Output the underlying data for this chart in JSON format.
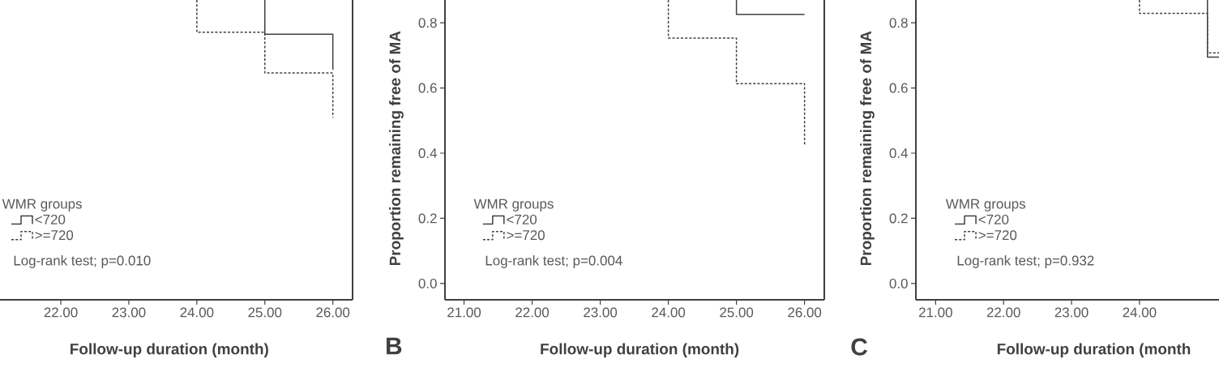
{
  "chart_data": [
    {
      "type": "line",
      "xlabel": "Follow-up duration (month)",
      "legend": "bottom left",
      "legend_title": "WMR groups",
      "tick_labels": "x",
      "xlim": [
        21.106,
        26.29
      ],
      "ylim": [
        -0.05,
        0.87
      ],
      "xticks": [
        {
          "value": 22,
          "label": "22.00"
        },
        {
          "value": 23,
          "label": "23.00"
        },
        {
          "value": 24,
          "label": "24.00"
        },
        {
          "value": 25,
          "label": "25.00"
        },
        {
          "value": 26,
          "label": "26.00"
        }
      ],
      "series": [
        {
          "name": "<720",
          "color": "#404040",
          "line_style": "solid",
          "x": [
            25,
            25,
            26,
            26
          ],
          "values": [
            0.87,
            0.765,
            0.765,
            0.656
          ]
        },
        {
          "name": ">=720",
          "color": "#404040",
          "line_style": "dashed",
          "x": [
            24,
            24,
            25,
            25,
            26,
            26
          ],
          "values": [
            0.87,
            0.771,
            0.771,
            0.646,
            0.646,
            0.509
          ]
        }
      ],
      "annotations": [
        "Log-rank test; p=0.010"
      ]
    },
    {
      "type": "line",
      "xlabel": "Follow-up duration (month)",
      "ylabel": "Proportion remaining free of MA",
      "legend": "bottom left",
      "legend_title": "WMR groups",
      "xlim": [
        20.72,
        26.29
      ],
      "ylim": [
        -0.05,
        0.87
      ],
      "xticks": [
        {
          "value": 21,
          "label": "21.00"
        },
        {
          "value": 22,
          "label": "22.00"
        },
        {
          "value": 23,
          "label": "23.00"
        },
        {
          "value": 24,
          "label": "24.00"
        },
        {
          "value": 25,
          "label": "25.00"
        },
        {
          "value": 26,
          "label": "26.00"
        }
      ],
      "yticks": [
        {
          "value": 0,
          "label": "0.0"
        },
        0.2,
        0.4,
        0.6,
        0.8
      ],
      "series": [
        {
          "name": "<720",
          "color": "#404040",
          "line_style": "solid",
          "x": [
            25,
            25,
            26
          ],
          "values": [
            0.87,
            0.826,
            0.826
          ]
        },
        {
          "name": ">=720",
          "color": "#404040",
          "line_style": "dashed",
          "x": [
            24,
            24,
            25,
            25,
            26,
            26
          ],
          "values": [
            0.87,
            0.753,
            0.753,
            0.613,
            0.613,
            0.425
          ]
        }
      ],
      "annotations": [
        "Log-rank test; p=0.004",
        "B"
      ]
    },
    {
      "type": "line",
      "xlabel": "Follow-up duration (month",
      "ylabel": "Proportion remaining free of MA",
      "legend": "bottom left",
      "legend_title": "WMR groups",
      "xlim": [
        20.71,
        25.17
      ],
      "ylim": [
        -0.05,
        0.87
      ],
      "xticks": [
        {
          "value": 21,
          "label": "21.00"
        },
        {
          "value": 22,
          "label": "22.00"
        },
        {
          "value": 23,
          "label": "23.00"
        },
        {
          "value": 24,
          "label": "24.00"
        }
      ],
      "yticks": [
        {
          "value": 0,
          "label": "0.0"
        },
        0.2,
        0.4,
        0.6,
        0.8
      ],
      "series": [
        {
          "name": "<720",
          "color": "#404040",
          "line_style": "solid",
          "x": [
            25,
            25,
            25.17
          ],
          "values": [
            0.87,
            0.695,
            0.695
          ]
        },
        {
          "name": ">=720",
          "color": "#404040",
          "line_style": "dashed",
          "x": [
            24,
            24,
            25,
            25,
            25.17
          ],
          "values": [
            0.87,
            0.829,
            0.829,
            0.708,
            0.708
          ]
        }
      ],
      "annotations": [
        "Log-rank test; p=0.932",
        "C"
      ]
    }
  ]
}
